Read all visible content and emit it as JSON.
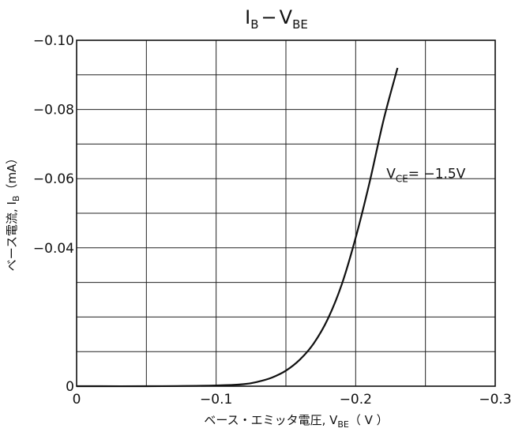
{
  "chart_data": {
    "type": "line",
    "title": "I_B − V_BE",
    "title_parts": {
      "main": "I",
      "main_sub": "B",
      "dash": "−",
      "second": "V",
      "second_sub": "BE"
    },
    "xlabel": "ベース・エミッタ電圧, V_BE（V）",
    "xlabel_parts": {
      "prefix": "ベース・エミッタ電圧, V",
      "sub": "BE",
      "unit": "（ V ）"
    },
    "ylabel": "ベース電流, I_B（mA）",
    "ylabel_parts": {
      "prefix": "ベース電流, I",
      "sub": "B",
      "unit": "（mA）"
    },
    "xlim": [
      0,
      -0.3
    ],
    "ylim": [
      0,
      -0.1
    ],
    "x_ticks": [
      {
        "value": 0,
        "label": "0"
      },
      {
        "value": -0.1,
        "label": "−0.1"
      },
      {
        "value": -0.2,
        "label": "−0.2"
      },
      {
        "value": -0.3,
        "label": "−0.3"
      }
    ],
    "y_ticks": [
      {
        "value": 0,
        "label": "0"
      },
      {
        "value": -0.04,
        "label": "−0.04"
      },
      {
        "value": -0.06,
        "label": "−0.06"
      },
      {
        "value": -0.08,
        "label": "−0.08"
      },
      {
        "value": -0.1,
        "label": "−0.10"
      }
    ],
    "grid": true,
    "grid_x_step": -0.05,
    "grid_y_step": -0.01,
    "series": [
      {
        "x": [
          0,
          -0.05,
          -0.1,
          -0.12,
          -0.13,
          -0.14,
          -0.15,
          -0.16,
          -0.17,
          -0.18,
          -0.19,
          -0.2,
          -0.21,
          -0.22,
          -0.23
        ],
        "y": [
          0,
          0,
          -0.0002,
          -0.0006,
          -0.0013,
          -0.0025,
          -0.0045,
          -0.0077,
          -0.0124,
          -0.0194,
          -0.0294,
          -0.0429,
          -0.059,
          -0.077,
          -0.092
        ]
      }
    ],
    "annotation": {
      "prefix": "V",
      "sub": "CE",
      "text": "= −1.5V",
      "x": -0.222,
      "y": -0.0615
    }
  }
}
